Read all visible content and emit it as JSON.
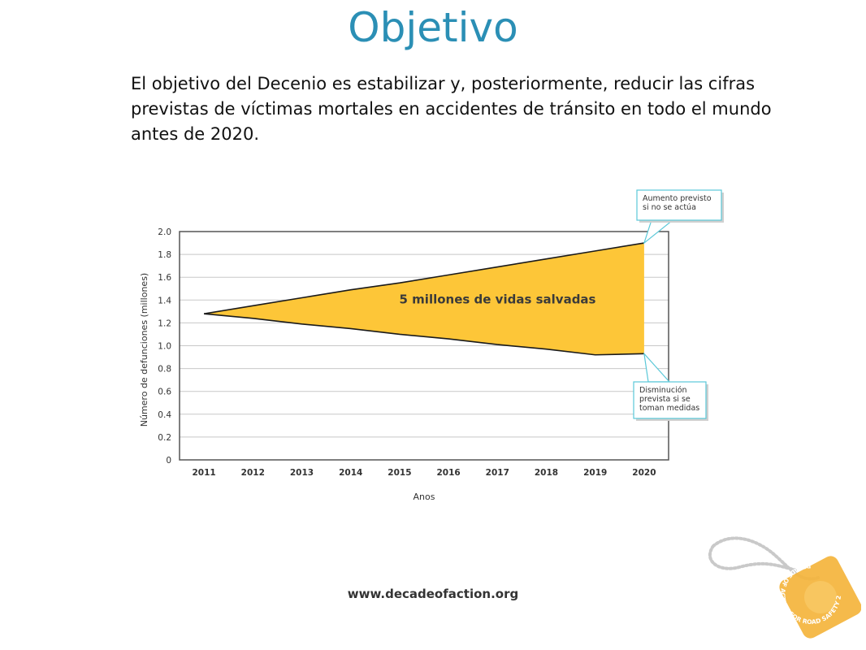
{
  "slide": {
    "title": "Objetivo",
    "body": "El objetivo del Decenio es estabilizar y, posteriormente, reducir las cifras previstas de víctimas mortales en accidentes de tránsito en todo el mundo antes de 2020.",
    "footer_url": "www.decadeofaction.org",
    "logo_text": "DECADE OF ACTION FOR ROAD SAFETY 2011-2020"
  },
  "colors": {
    "title": "#2B8FB5",
    "fill": "#FDC638",
    "callout_border": "#5AC8D8"
  },
  "chart_data": {
    "type": "area",
    "xlabel": "Anos",
    "ylabel": "Número de defunciones (millones)",
    "x": [
      2011,
      2012,
      2013,
      2014,
      2015,
      2016,
      2017,
      2018,
      2019,
      2020
    ],
    "x_tick_labels": [
      "2011",
      "2012",
      "2013",
      "2014",
      "2015",
      "2016",
      "2017",
      "2018",
      "2019",
      "2020"
    ],
    "y_ticks": [
      0,
      0.2,
      0.4,
      0.6,
      0.8,
      1.0,
      1.2,
      1.4,
      1.6,
      1.8,
      2.0
    ],
    "y_tick_labels": [
      "0",
      "0.2",
      "0.4",
      "0.6",
      "0.8",
      "1.0",
      "1.2",
      "1.4",
      "1.6",
      "1.8",
      "2.0"
    ],
    "ylim": [
      0,
      2.0
    ],
    "xlim": [
      2010.5,
      2020.5
    ],
    "grid": true,
    "series": [
      {
        "values": [
          1.28,
          1.35,
          1.42,
          1.49,
          1.55,
          1.62,
          1.69,
          1.76,
          1.83,
          1.9
        ]
      },
      {
        "values": [
          1.28,
          1.24,
          1.19,
          1.15,
          1.1,
          1.06,
          1.01,
          0.97,
          0.92,
          0.93
        ]
      }
    ],
    "area_label": "5 millones de vidas salvadas",
    "callouts": [
      {
        "text_lines": [
          "Aumento previsto",
          "si no se actúa"
        ],
        "x": 2020,
        "y": 1.9
      },
      {
        "text_lines": [
          "Disminución",
          "prevista si se",
          "toman medidas"
        ],
        "x": 2020,
        "y": 0.93
      }
    ]
  }
}
